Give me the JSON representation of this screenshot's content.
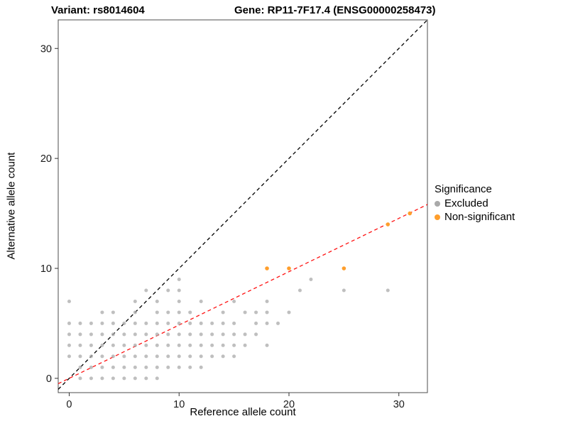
{
  "chart_data": {
    "type": "scatter",
    "title_left": "Variant: rs8014604",
    "title_right": "Gene: RP11-7F17.4 (ENSG00000258473)",
    "xlabel": "Reference allele count",
    "ylabel": "Alternative allele count",
    "xlim": [
      -1.0,
      32.6
    ],
    "ylim": [
      -1.3,
      32.6
    ],
    "xticks": [
      0,
      10,
      20,
      30
    ],
    "yticks": [
      0,
      10,
      20,
      30
    ],
    "grid": false,
    "legend": {
      "title": "Significance",
      "position": "right",
      "items": [
        {
          "label": "Excluded",
          "color": "#A9A9A9"
        },
        {
          "label": "Non-significant",
          "color": "#FF9E2C"
        }
      ]
    },
    "lines": [
      {
        "name": "identity-line",
        "slope": 1,
        "intercept": 0,
        "color": "#000000",
        "dash": "5,4"
      },
      {
        "name": "fit-line",
        "slope": 0.485,
        "intercept": 0,
        "color": "#FF1111",
        "dash": "5,4"
      }
    ],
    "series": [
      {
        "name": "Excluded",
        "color": "#A9A9A9",
        "opacity": 0.75,
        "point_radius": 2.5,
        "points": [
          [
            0,
            2
          ],
          [
            0,
            3
          ],
          [
            0,
            4
          ],
          [
            0,
            5
          ],
          [
            0,
            7
          ],
          [
            1,
            0
          ],
          [
            1,
            1
          ],
          [
            1,
            2
          ],
          [
            1,
            3
          ],
          [
            1,
            4
          ],
          [
            1,
            5
          ],
          [
            2,
            0
          ],
          [
            2,
            1
          ],
          [
            2,
            2
          ],
          [
            2,
            3
          ],
          [
            2,
            4
          ],
          [
            2,
            5
          ],
          [
            3,
            0
          ],
          [
            3,
            1
          ],
          [
            3,
            2
          ],
          [
            3,
            3
          ],
          [
            3,
            4
          ],
          [
            3,
            5
          ],
          [
            3,
            6
          ],
          [
            4,
            0
          ],
          [
            4,
            1
          ],
          [
            4,
            2
          ],
          [
            4,
            3
          ],
          [
            4,
            4
          ],
          [
            4,
            5
          ],
          [
            4,
            6
          ],
          [
            5,
            0
          ],
          [
            5,
            1
          ],
          [
            5,
            2
          ],
          [
            5,
            3
          ],
          [
            5,
            4
          ],
          [
            5,
            5
          ],
          [
            6,
            0
          ],
          [
            6,
            1
          ],
          [
            6,
            2
          ],
          [
            6,
            3
          ],
          [
            6,
            4
          ],
          [
            6,
            5
          ],
          [
            6,
            6
          ],
          [
            6,
            7
          ],
          [
            7,
            0
          ],
          [
            7,
            1
          ],
          [
            7,
            2
          ],
          [
            7,
            3
          ],
          [
            7,
            4
          ],
          [
            7,
            5
          ],
          [
            7,
            8
          ],
          [
            8,
            0
          ],
          [
            8,
            1
          ],
          [
            8,
            2
          ],
          [
            8,
            3
          ],
          [
            8,
            4
          ],
          [
            8,
            5
          ],
          [
            8,
            6
          ],
          [
            8,
            7
          ],
          [
            9,
            1
          ],
          [
            9,
            2
          ],
          [
            9,
            3
          ],
          [
            9,
            4
          ],
          [
            9,
            5
          ],
          [
            9,
            6
          ],
          [
            9,
            8
          ],
          [
            10,
            1
          ],
          [
            10,
            2
          ],
          [
            10,
            3
          ],
          [
            10,
            4
          ],
          [
            10,
            5
          ],
          [
            10,
            6
          ],
          [
            10,
            7
          ],
          [
            10,
            8
          ],
          [
            10,
            9
          ],
          [
            11,
            1
          ],
          [
            11,
            2
          ],
          [
            11,
            3
          ],
          [
            11,
            4
          ],
          [
            11,
            5
          ],
          [
            11,
            6
          ],
          [
            12,
            1
          ],
          [
            12,
            2
          ],
          [
            12,
            3
          ],
          [
            12,
            4
          ],
          [
            12,
            5
          ],
          [
            12,
            7
          ],
          [
            13,
            2
          ],
          [
            13,
            3
          ],
          [
            13,
            4
          ],
          [
            13,
            5
          ],
          [
            14,
            2
          ],
          [
            14,
            3
          ],
          [
            14,
            4
          ],
          [
            14,
            5
          ],
          [
            14,
            6
          ],
          [
            15,
            2
          ],
          [
            15,
            3
          ],
          [
            15,
            4
          ],
          [
            15,
            5
          ],
          [
            15,
            7
          ],
          [
            16,
            3
          ],
          [
            16,
            4
          ],
          [
            16,
            6
          ],
          [
            17,
            4
          ],
          [
            17,
            5
          ],
          [
            17,
            6
          ],
          [
            18,
            3
          ],
          [
            18,
            5
          ],
          [
            18,
            6
          ],
          [
            18,
            7
          ],
          [
            19,
            5
          ],
          [
            20,
            6
          ],
          [
            21,
            8
          ],
          [
            22,
            9
          ],
          [
            25,
            8
          ],
          [
            29,
            8
          ]
        ]
      },
      {
        "name": "Non-significant",
        "color": "#FF9E2C",
        "opacity": 1,
        "point_radius": 2.8,
        "points": [
          [
            18,
            10
          ],
          [
            20,
            10
          ],
          [
            25,
            10
          ],
          [
            29,
            14
          ],
          [
            31,
            15
          ]
        ]
      }
    ]
  }
}
